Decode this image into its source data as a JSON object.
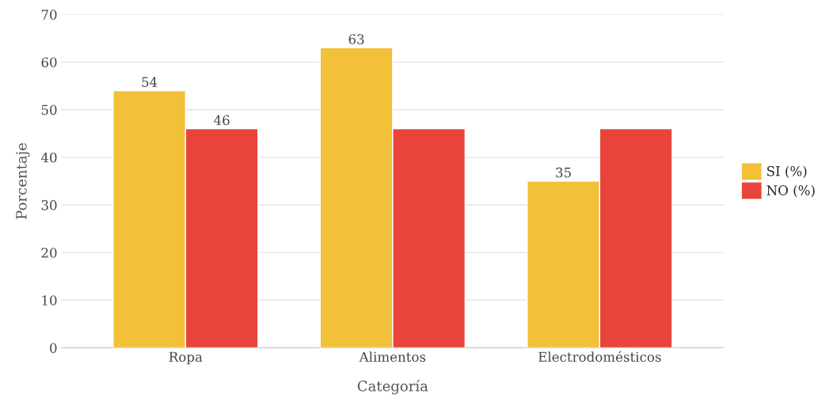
{
  "chart_data": {
    "type": "bar",
    "xlabel": "Categoría",
    "ylabel": "Porcentaje",
    "categories": [
      "Ropa",
      "Alimentos",
      "Electrodomésticos"
    ],
    "series": [
      {
        "name": "SI (%)",
        "color": "#f3c03a",
        "values": [
          54,
          63,
          35
        ],
        "value_labels": [
          "54",
          "63",
          "35"
        ]
      },
      {
        "name": "NO (%)",
        "color": "#e8443c",
        "values": [
          46,
          46,
          46
        ],
        "value_labels": [
          "46",
          null,
          null
        ]
      }
    ],
    "ylim": [
      0,
      70
    ],
    "yticks": [
      0,
      10,
      20,
      30,
      40,
      50,
      60,
      70
    ],
    "grid": "y",
    "legend": "right"
  }
}
